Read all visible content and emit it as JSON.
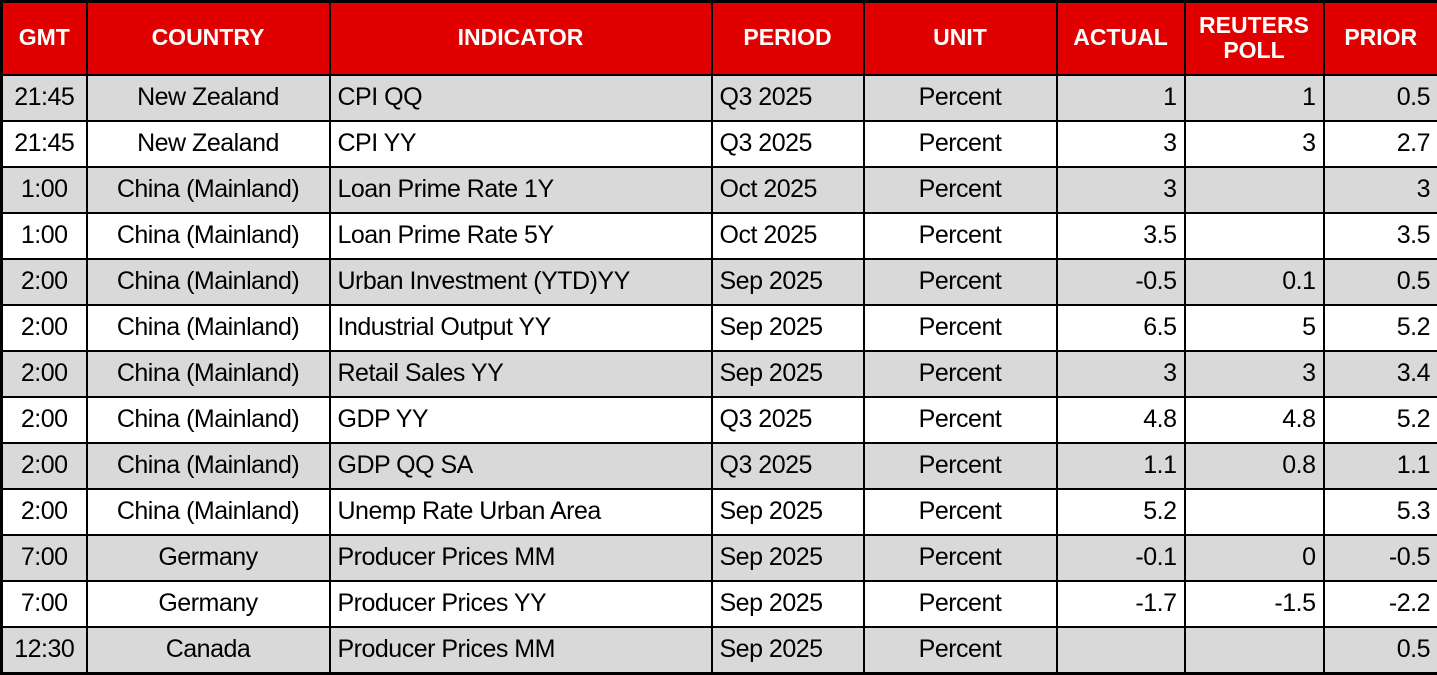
{
  "colors": {
    "header_bg": "#e00000",
    "header_text": "#ffffff",
    "row_alt_bg": "#d9d9d9",
    "row_bg": "#ffffff",
    "border": "#000000"
  },
  "chart_data": {
    "type": "table",
    "title": "",
    "columns": [
      "GMT",
      "COUNTRY",
      "INDICATOR",
      "PERIOD",
      "UNIT",
      "ACTUAL",
      "REUTERS POLL",
      "PRIOR"
    ],
    "rows": [
      [
        "21:45",
        "New Zealand",
        "CPI QQ",
        "Q3 2025",
        "Percent",
        "1",
        "1",
        "0.5"
      ],
      [
        "21:45",
        "New Zealand",
        "CPI YY",
        "Q3 2025",
        "Percent",
        "3",
        "3",
        "2.7"
      ],
      [
        "1:00",
        "China (Mainland)",
        "Loan Prime Rate 1Y",
        "Oct 2025",
        "Percent",
        "3",
        "",
        "3"
      ],
      [
        "1:00",
        "China (Mainland)",
        "Loan Prime Rate 5Y",
        "Oct 2025",
        "Percent",
        "3.5",
        "",
        "3.5"
      ],
      [
        "2:00",
        "China (Mainland)",
        "Urban Investment (YTD)YY",
        "Sep 2025",
        "Percent",
        "-0.5",
        "0.1",
        "0.5"
      ],
      [
        "2:00",
        "China (Mainland)",
        "Industrial Output YY",
        "Sep 2025",
        "Percent",
        "6.5",
        "5",
        "5.2"
      ],
      [
        "2:00",
        "China (Mainland)",
        "Retail Sales YY",
        "Sep 2025",
        "Percent",
        "3",
        "3",
        "3.4"
      ],
      [
        "2:00",
        "China (Mainland)",
        "GDP YY",
        "Q3 2025",
        "Percent",
        "4.8",
        "4.8",
        "5.2"
      ],
      [
        "2:00",
        "China (Mainland)",
        "GDP QQ SA",
        "Q3 2025",
        "Percent",
        "1.1",
        "0.8",
        "1.1"
      ],
      [
        "2:00",
        "China (Mainland)",
        "Unemp Rate Urban Area",
        "Sep 2025",
        "Percent",
        "5.2",
        "",
        "5.3"
      ],
      [
        "7:00",
        "Germany",
        "Producer Prices MM",
        "Sep 2025",
        "Percent",
        "-0.1",
        "0",
        "-0.5"
      ],
      [
        "7:00",
        "Germany",
        "Producer Prices YY",
        "Sep 2025",
        "Percent",
        "-1.7",
        "-1.5",
        "-2.2"
      ],
      [
        "12:30",
        "Canada",
        "Producer Prices MM",
        "Sep 2025",
        "Percent",
        "",
        "",
        "0.5"
      ]
    ]
  }
}
